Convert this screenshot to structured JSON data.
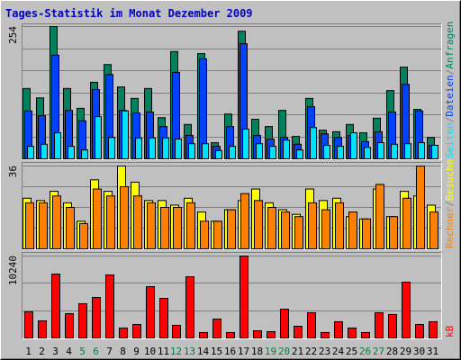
{
  "chart_data": [
    {
      "type": "bar",
      "title": "Tages-Statistik im Monat Dezember 2009",
      "label_separator": "/",
      "ylim": [
        0,
        254
      ],
      "yticks": [
        254
      ],
      "series": [
        {
          "name": "Anfragen",
          "color": "#00805c",
          "values": [
            135,
            117,
            254,
            135,
            97,
            147,
            181,
            138,
            116,
            135,
            79,
            206,
            66,
            202,
            31,
            86,
            245,
            76,
            62,
            93,
            43,
            116,
            55,
            52,
            66,
            50,
            78,
            131,
            176,
            95,
            41
          ]
        },
        {
          "name": "Dateien",
          "color": "#0040ff",
          "values": [
            92,
            83,
            199,
            93,
            73,
            133,
            162,
            93,
            88,
            90,
            62,
            166,
            45,
            192,
            24,
            62,
            221,
            45,
            38,
            41,
            28,
            100,
            48,
            41,
            45,
            33,
            52,
            90,
            143,
            92,
            26
          ]
        },
        {
          "name": "Seiten",
          "color": "#00e0ff",
          "values": [
            24,
            28,
            50,
            24,
            17,
            81,
            41,
            92,
            40,
            40,
            40,
            38,
            29,
            29,
            16,
            24,
            57,
            29,
            24,
            36,
            17,
            60,
            26,
            24,
            50,
            22,
            31,
            28,
            29,
            31,
            26
          ]
        }
      ]
    },
    {
      "type": "bar",
      "label_separator": "/",
      "ylim": [
        0,
        36
      ],
      "yticks": [
        36
      ],
      "series": [
        {
          "name": "Besuche",
          "color": "#ffff00",
          "values": [
            22,
            21,
            25,
            20,
            12,
            30,
            25,
            36,
            29,
            21,
            21,
            19,
            22,
            16,
            12,
            17,
            21,
            26,
            20,
            17,
            15,
            26,
            21,
            22,
            14,
            13,
            26,
            14,
            25,
            23,
            19
          ]
        },
        {
          "name": "Rechner",
          "color": "#ff8000",
          "values": [
            20,
            20,
            23,
            18,
            11,
            26,
            23,
            27,
            23,
            20,
            18,
            18,
            20,
            12,
            12,
            17,
            24,
            21,
            18,
            16,
            14,
            20,
            17,
            20,
            16,
            13,
            28,
            14,
            22,
            36,
            16
          ]
        }
      ]
    },
    {
      "type": "bar",
      "ylim": [
        0,
        10240
      ],
      "yticks": [
        10240
      ],
      "categories": [
        "1",
        "2",
        "3",
        "4",
        "5",
        "6",
        "7",
        "8",
        "9",
        "10",
        "11",
        "12",
        "13",
        "14",
        "15",
        "16",
        "17",
        "18",
        "19",
        "20",
        "21",
        "22",
        "23",
        "24",
        "25",
        "26",
        "27",
        "28",
        "29",
        "30",
        "31"
      ],
      "category_colors": [
        "#000000",
        "#000000",
        "#000000",
        "#000000",
        "#008040",
        "#008040",
        "#000000",
        "#000000",
        "#000000",
        "#000000",
        "#000000",
        "#008040",
        "#008040",
        "#000000",
        "#000000",
        "#000000",
        "#000000",
        "#000000",
        "#008040",
        "#008040",
        "#000000",
        "#000000",
        "#000000",
        "#000000",
        "#000000",
        "#008040",
        "#008040",
        "#000000",
        "#000000",
        "#000000",
        "#000000"
      ],
      "series": [
        {
          "name": "kB",
          "color": "#ff0000",
          "values": [
            3260,
            2140,
            7990,
            3040,
            4280,
            5060,
            7880,
            1240,
            1690,
            6410,
            4950,
            1580,
            7650,
            680,
            2360,
            680,
            10240,
            900,
            790,
            3600,
            1460,
            3150,
            680,
            2030,
            1240,
            680,
            3150,
            2930,
            6980,
            1690,
            2030
          ]
        }
      ]
    }
  ]
}
